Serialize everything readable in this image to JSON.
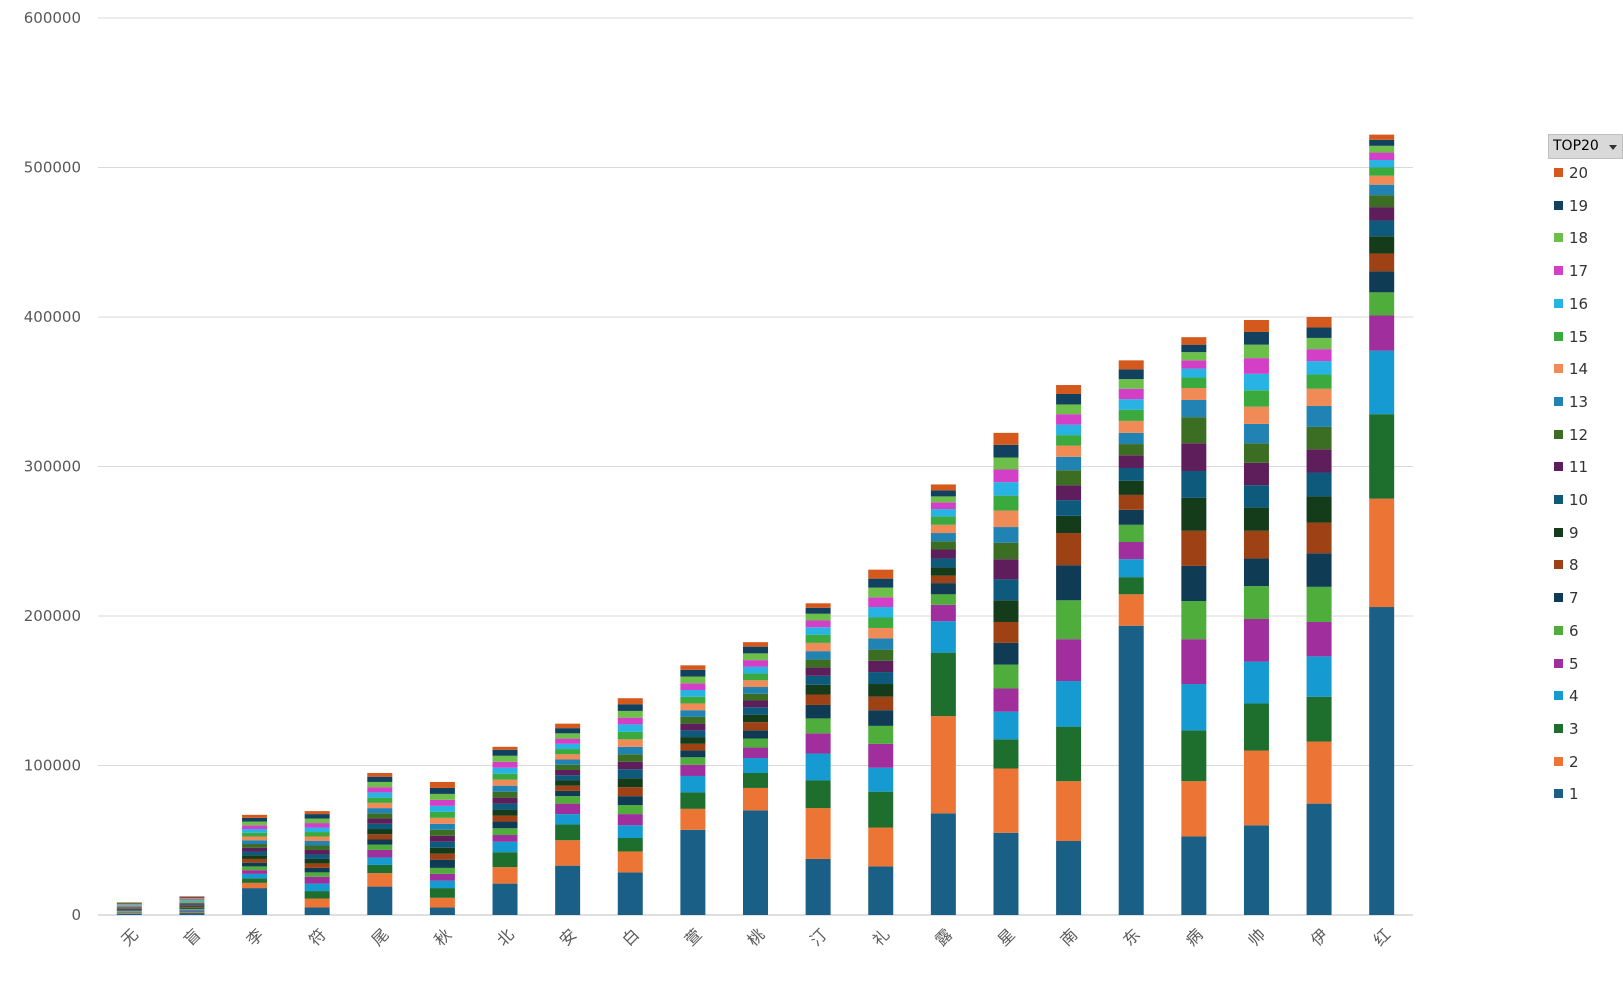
{
  "chart_data": {
    "type": "bar",
    "stacked": true,
    "categories": [
      "无",
      "盲",
      "李",
      "符",
      "尾",
      "秋",
      "北",
      "安",
      "白",
      "萱",
      "桃",
      "汀",
      "礼",
      "露",
      "星",
      "南",
      "东",
      "病",
      "帅",
      "伊",
      "红"
    ],
    "ylim": [
      0,
      600000
    ],
    "yticks": [
      "0",
      "100000",
      "200000",
      "300000",
      "400000",
      "500000",
      "600000"
    ],
    "grid": true,
    "legend_title": "TOP20",
    "legend_position": "right",
    "series": [
      {
        "name": "1",
        "color": "#1a5f86",
        "values": [
          900,
          1300,
          18000,
          5000,
          19000,
          5000,
          21000,
          33000,
          28500,
          57000,
          70000,
          37500,
          32500,
          68000,
          55000,
          49500,
          193500,
          52500,
          60000,
          74500,
          206000
        ]
      },
      {
        "name": "2",
        "color": "#ec7535",
        "values": [
          500,
          500,
          3500,
          6000,
          9000,
          6500,
          11000,
          17000,
          14000,
          14000,
          15000,
          34000,
          26000,
          65000,
          43000,
          40000,
          21000,
          37000,
          50000,
          41500,
          72500
        ]
      },
      {
        "name": "3",
        "color": "#1e6e2e",
        "values": [
          400,
          600,
          3000,
          5000,
          5500,
          6500,
          10000,
          10500,
          9000,
          11000,
          10000,
          18500,
          24000,
          42500,
          19500,
          36500,
          11500,
          34000,
          31500,
          30000,
          56500
        ]
      },
      {
        "name": "4",
        "color": "#159bd2",
        "values": [
          400,
          500,
          3000,
          5000,
          5000,
          5000,
          7000,
          7000,
          8500,
          11000,
          10000,
          18000,
          16000,
          21000,
          18500,
          30500,
          12000,
          31000,
          28000,
          27000,
          42500
        ]
      },
      {
        "name": "5",
        "color": "#a02f9d",
        "values": [
          300,
          600,
          2500,
          4500,
          5000,
          4500,
          4500,
          7000,
          7500,
          7500,
          7000,
          13500,
          16000,
          11000,
          15500,
          28000,
          11500,
          30000,
          28500,
          23000,
          23500
        ]
      },
      {
        "name": "6",
        "color": "#4fad3b",
        "values": [
          400,
          600,
          2500,
          3000,
          3500,
          4000,
          4500,
          5000,
          6000,
          5000,
          6000,
          10000,
          12000,
          7000,
          16000,
          26000,
          11500,
          25500,
          22000,
          23500,
          15500
        ]
      },
      {
        "name": "7",
        "color": "#0f3b55",
        "values": [
          400,
          600,
          2500,
          3000,
          3500,
          5500,
          4500,
          3500,
          6000,
          4500,
          5500,
          9000,
          10500,
          7500,
          14500,
          23500,
          10000,
          23500,
          18500,
          22500,
          14000
        ]
      },
      {
        "name": "8",
        "color": "#9e4216",
        "values": [
          400,
          600,
          2500,
          3000,
          3500,
          4000,
          4000,
          3500,
          6000,
          4500,
          5500,
          7000,
          9000,
          5000,
          14000,
          21500,
          10000,
          23500,
          18500,
          20500,
          12000
        ]
      },
      {
        "name": "9",
        "color": "#143b1a",
        "values": [
          400,
          600,
          2500,
          3000,
          3500,
          4000,
          4000,
          3500,
          6000,
          4500,
          5000,
          6500,
          8500,
          5500,
          14500,
          11500,
          9500,
          22000,
          15500,
          17500,
          11500
        ]
      },
      {
        "name": "10",
        "color": "#0e5a7d",
        "values": [
          400,
          600,
          2500,
          3000,
          3500,
          4000,
          4000,
          3500,
          6000,
          4500,
          5000,
          6000,
          8000,
          6000,
          14000,
          10500,
          8500,
          18000,
          15000,
          16000,
          10500
        ]
      },
      {
        "name": "11",
        "color": "#5e1d5b",
        "values": [
          400,
          600,
          2500,
          3000,
          3500,
          4000,
          4000,
          3500,
          5000,
          4500,
          4500,
          5500,
          7500,
          6000,
          13500,
          10000,
          8500,
          18500,
          15000,
          15500,
          9000
        ]
      },
      {
        "name": "12",
        "color": "#3b6d22",
        "values": [
          400,
          600,
          2500,
          3000,
          3500,
          4000,
          4000,
          3500,
          5000,
          4500,
          4500,
          5500,
          7500,
          5500,
          11000,
          10000,
          7500,
          17500,
          13000,
          15000,
          8000
        ]
      },
      {
        "name": "13",
        "color": "#2083b4",
        "values": [
          400,
          600,
          2500,
          3000,
          3500,
          4000,
          4000,
          3500,
          5000,
          4500,
          4500,
          5500,
          7500,
          5500,
          10500,
          9000,
          7500,
          11500,
          13000,
          14000,
          7000
        ]
      },
      {
        "name": "14",
        "color": "#f08b58",
        "values": [
          400,
          600,
          2500,
          3000,
          3500,
          4000,
          4000,
          3500,
          5000,
          4500,
          4500,
          5500,
          7000,
          5500,
          11000,
          7500,
          8000,
          8000,
          11500,
          11500,
          6000
        ]
      },
      {
        "name": "15",
        "color": "#3aaa3f",
        "values": [
          400,
          600,
          2500,
          3000,
          3500,
          4000,
          4000,
          3500,
          5000,
          4500,
          4500,
          5500,
          7000,
          5500,
          10000,
          7000,
          7500,
          7000,
          11000,
          9500,
          5500
        ]
      },
      {
        "name": "16",
        "color": "#27b3e3",
        "values": [
          400,
          600,
          2500,
          3000,
          3500,
          4000,
          4000,
          3500,
          5000,
          4500,
          4500,
          5000,
          7000,
          5000,
          9000,
          7000,
          7000,
          6000,
          11000,
          9000,
          5000
        ]
      },
      {
        "name": "17",
        "color": "#d43fc7",
        "values": [
          400,
          600,
          2500,
          3000,
          3500,
          4000,
          4000,
          3500,
          4500,
          4500,
          4500,
          4500,
          6500,
          4500,
          8500,
          7000,
          7000,
          5500,
          10500,
          8000,
          5000
        ]
      },
      {
        "name": "18",
        "color": "#6cc04a",
        "values": [
          400,
          600,
          2500,
          3000,
          3500,
          4000,
          4000,
          3500,
          4500,
          4500,
          4500,
          4500,
          6500,
          4000,
          8000,
          6500,
          6500,
          5500,
          9000,
          7500,
          4500
        ]
      },
      {
        "name": "19",
        "color": "#11415f",
        "values": [
          400,
          600,
          2500,
          3000,
          3500,
          4000,
          4000,
          3500,
          4500,
          4500,
          4500,
          4000,
          6000,
          4000,
          8500,
          7000,
          6500,
          5000,
          8500,
          7000,
          4000
        ]
      },
      {
        "name": "20",
        "color": "#d5591c",
        "values": [
          400,
          600,
          2000,
          2000,
          2500,
          4000,
          2000,
          3000,
          4000,
          3000,
          3000,
          3000,
          6000,
          4000,
          8000,
          6000,
          6000,
          5000,
          8000,
          7000,
          3500
        ]
      }
    ]
  }
}
